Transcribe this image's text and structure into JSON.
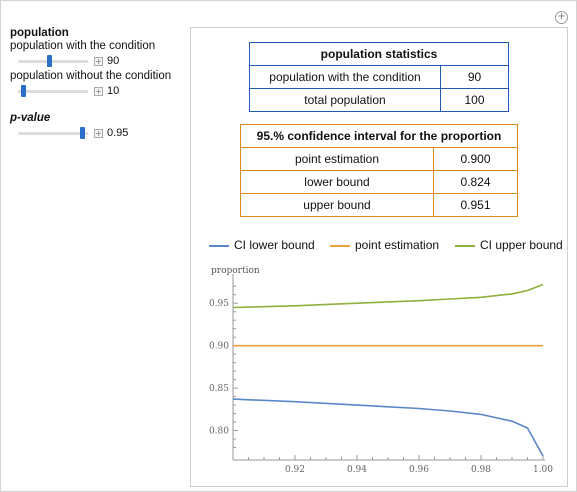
{
  "controls": {
    "population_heading": "population",
    "with_condition_label": "population with the condition",
    "with_condition_value": "90",
    "with_condition_fraction": 0.45,
    "without_condition_label": "population without the condition",
    "without_condition_value": "10",
    "without_condition_fraction": 0.05,
    "pvalue_label": "p-value",
    "pvalue_value": "0.95",
    "pvalue_fraction": 0.95,
    "plus_symbol": "+"
  },
  "stats_table": {
    "title": "population statistics",
    "rows": [
      {
        "label": "population with the condition",
        "value": "90"
      },
      {
        "label": "total population",
        "value": "100"
      }
    ]
  },
  "ci_table": {
    "title": "95.% confidence interval for the proportion",
    "rows": [
      {
        "label": "point estimation",
        "value": "0.900"
      },
      {
        "label": "lower bound",
        "value": "0.824"
      },
      {
        "label": "upper bound",
        "value": "0.951"
      }
    ]
  },
  "colors": {
    "lower": "#5b86c8",
    "point": "#e8a13a",
    "upper": "#8fb03c"
  },
  "chart_data": {
    "type": "line",
    "ylabel": "proportion",
    "xlim": [
      0.9,
      1.0
    ],
    "ylim": [
      0.77,
      0.975
    ],
    "xticks": [
      0.92,
      0.94,
      0.96,
      0.98,
      1.0
    ],
    "xtick_labels": [
      "0.92",
      "0.94",
      "0.96",
      "0.98",
      "1.00"
    ],
    "yticks": [
      0.8,
      0.85,
      0.9,
      0.95
    ],
    "ytick_labels": [
      "0.80",
      "0.85",
      "0.90",
      "0.95"
    ],
    "legend": [
      "CI lower bound",
      "point estimation",
      "CI upper bound"
    ],
    "series": [
      {
        "name": "CI lower bound",
        "x": [
          0.9,
          0.92,
          0.94,
          0.96,
          0.97,
          0.98,
          0.99,
          0.995,
          1.0
        ],
        "y": [
          0.837,
          0.834,
          0.83,
          0.826,
          0.823,
          0.819,
          0.811,
          0.803,
          0.77
        ]
      },
      {
        "name": "point estimation",
        "x": [
          0.9,
          1.0
        ],
        "y": [
          0.9,
          0.9
        ]
      },
      {
        "name": "CI upper bound",
        "x": [
          0.9,
          0.92,
          0.94,
          0.96,
          0.97,
          0.98,
          0.99,
          0.995,
          1.0
        ],
        "y": [
          0.945,
          0.947,
          0.95,
          0.953,
          0.955,
          0.957,
          0.961,
          0.965,
          0.972
        ]
      }
    ]
  }
}
